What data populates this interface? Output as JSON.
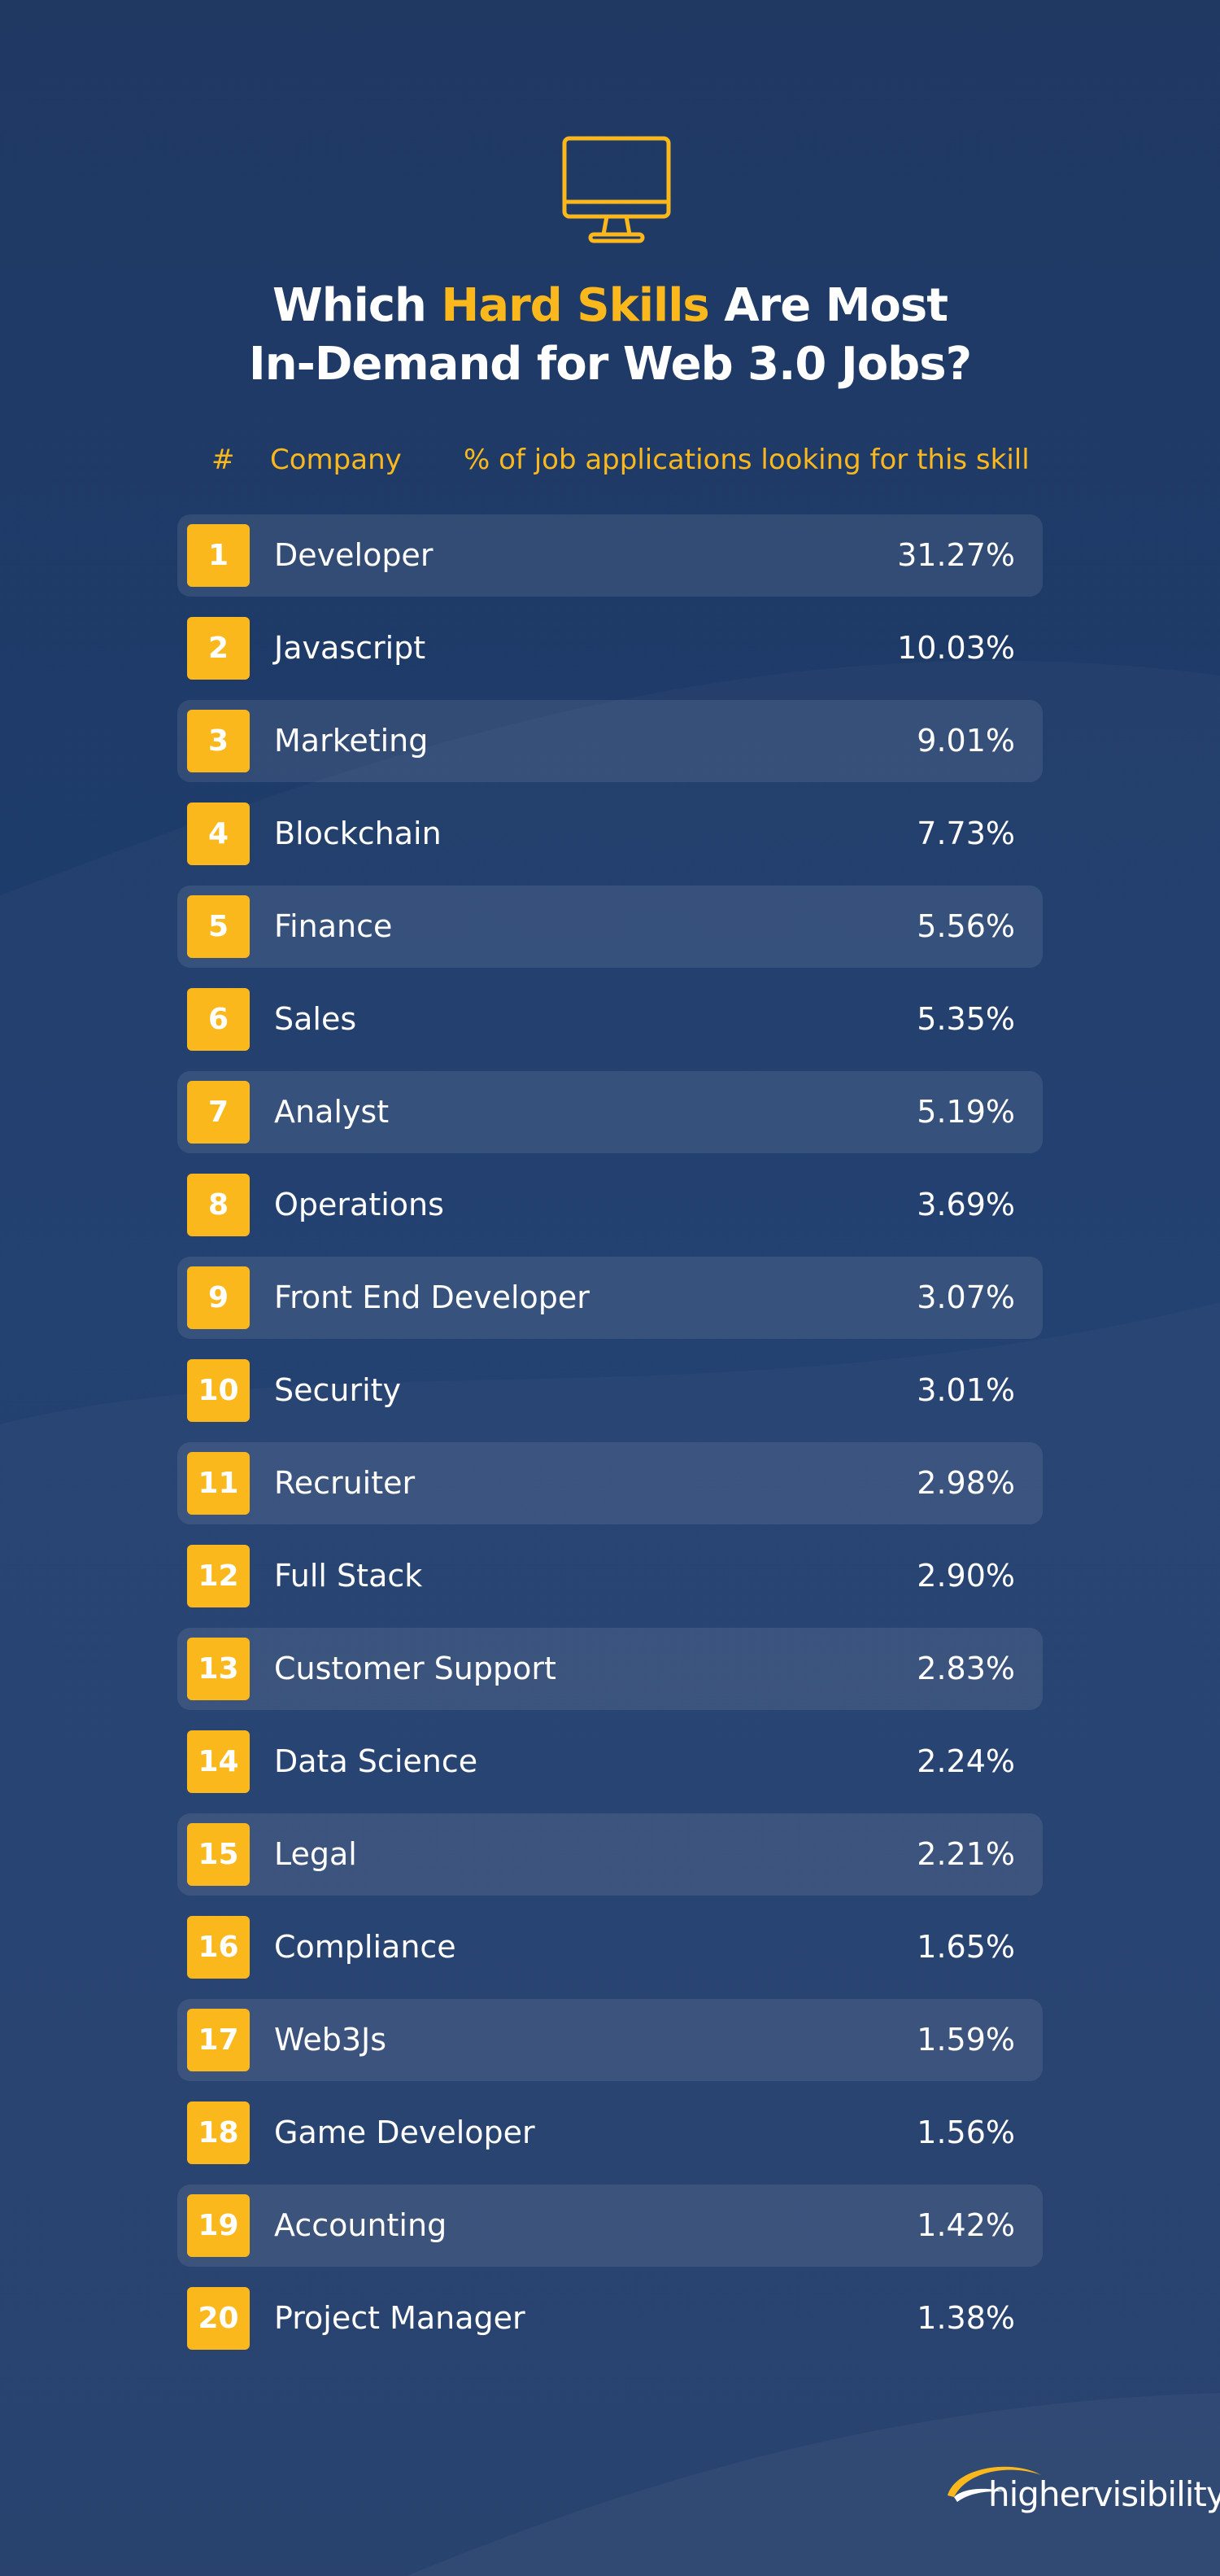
{
  "header": {
    "title_before": "Which",
    "title_highlight": "Hard Skills",
    "title_after": "Are Most",
    "title_line2": "In-Demand for Web 3.0 Jobs?"
  },
  "table": {
    "columns": [
      "#",
      "Company",
      "% of job applications looking for this skill"
    ],
    "rows": [
      [
        "1",
        "Developer",
        "31.27%"
      ],
      [
        "2",
        "Javascript",
        "10.03%"
      ],
      [
        "3",
        "Marketing",
        "9.01%"
      ],
      [
        "4",
        "Blockchain",
        "7.73%"
      ],
      [
        "5",
        "Finance",
        "5.56%"
      ],
      [
        "6",
        "Sales",
        "5.35%"
      ],
      [
        "7",
        "Analyst",
        "5.19%"
      ],
      [
        "8",
        "Operations",
        "3.69%"
      ],
      [
        "9",
        "Front End Developer",
        "3.07%"
      ],
      [
        "10",
        "Security",
        "3.01%"
      ],
      [
        "11",
        "Recruiter",
        "2.98%"
      ],
      [
        "12",
        "Full Stack",
        "2.90%"
      ],
      [
        "13",
        "Customer Support",
        "2.83%"
      ],
      [
        "14",
        "Data Science",
        "2.24%"
      ],
      [
        "15",
        "Legal",
        "2.21%"
      ],
      [
        "16",
        "Compliance",
        "1.65%"
      ],
      [
        "17",
        "Web3Js",
        "1.59%"
      ],
      [
        "18",
        "Game Developer",
        "1.56%"
      ],
      [
        "19",
        "Accounting",
        "1.42%"
      ],
      [
        "20",
        "Project Manager",
        "1.38%"
      ]
    ]
  },
  "footer": {
    "logo": "highervisibility"
  }
}
